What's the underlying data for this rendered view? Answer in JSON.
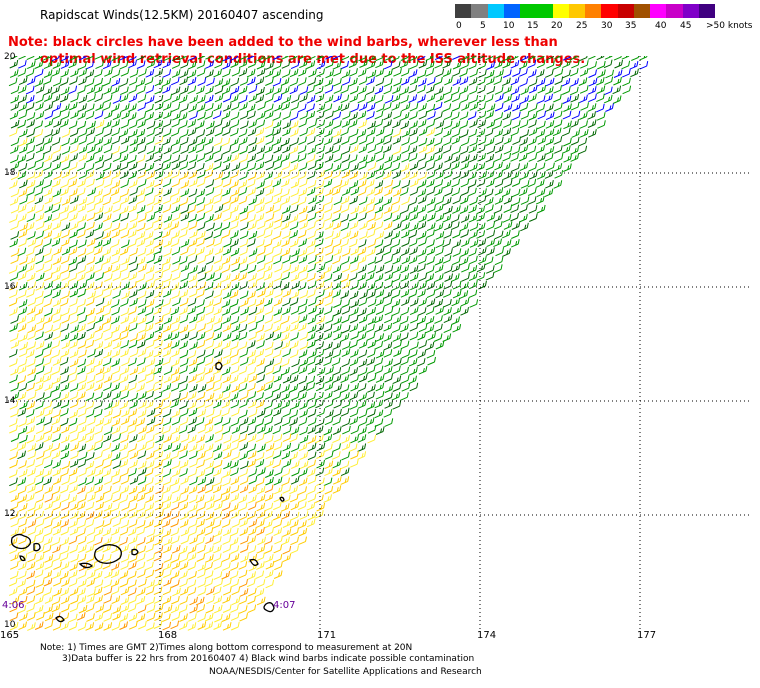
{
  "title": "Rapidscat Winds(12.5KM) 20160407 ascending",
  "note_line1": "Note: black circles have been added to the wind barbs, wherever less than",
  "note_line2": "optimal wind retrieval conditions are met due to the ISS altitude changes.",
  "scale": {
    "labels": [
      "0",
      "5",
      "10",
      "15",
      "20",
      "25",
      "30",
      "35",
      "40",
      "45",
      ">50 knots"
    ],
    "colors": [
      "#404040",
      "#808080",
      "#00c8ff",
      "#0064ff",
      "#00c800",
      "#00c800",
      "#ffff00",
      "#ffc800",
      "#ff8000",
      "#ff0000",
      "#c80000",
      "#a05000",
      "#ff00ff",
      "#c800c8",
      "#8000c8",
      "#400080"
    ]
  },
  "map": {
    "lat_labels": [
      "20",
      "18",
      "16",
      "14",
      "12",
      "10"
    ],
    "lon_labels": [
      "165",
      "168",
      "171",
      "174",
      "177"
    ],
    "time_labels": [
      "4:06",
      "4:07"
    ],
    "barb_colors": {
      "blue": "#0000ff",
      "green": "#009900",
      "dark_green": "#006600",
      "yellow": "#ffee33",
      "gold": "#ffcc00",
      "orange": "#ff9900"
    }
  },
  "footnote_line1": "Note: 1) Times are GMT 2)Times along bottom correspond to measurement at 20N",
  "footnote_line2": "3)Data buffer is 22 hrs from 20160407 4) Black wind barbs indicate possible contamination",
  "credits": "NOAA/NESDIS/Center for Satellite Applications and Research"
}
